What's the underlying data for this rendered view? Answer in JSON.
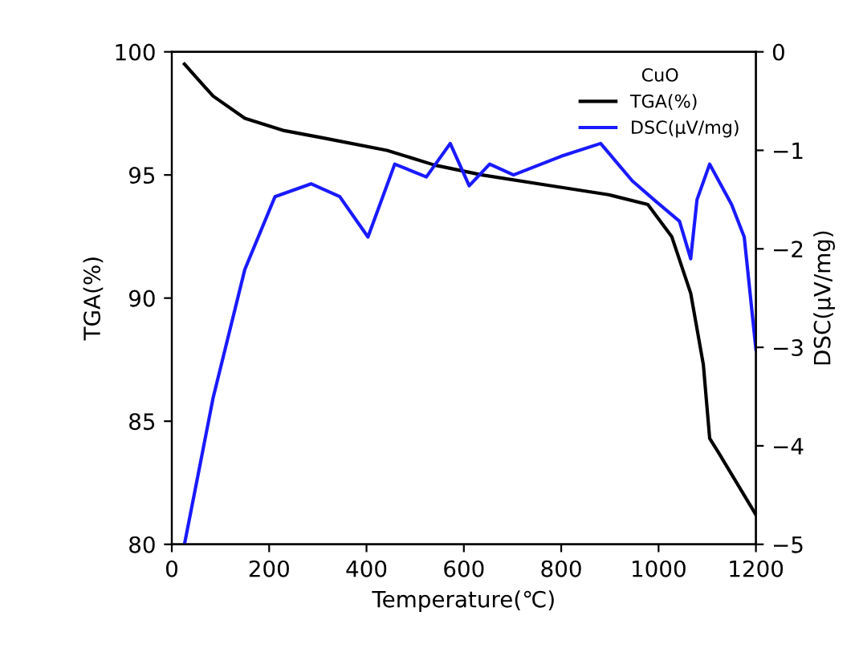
{
  "chart_data": {
    "type": "line",
    "xlabel": "Temperature(℃)",
    "ylabel": "TGA(%)",
    "y2label": "DSC(μV/mg)",
    "legend_title": "CuO",
    "legend": "top right",
    "grid": false,
    "xlim": [
      0,
      1200
    ],
    "xticks": [
      0,
      200,
      400,
      600,
      800,
      1000,
      1200
    ],
    "ylim": [
      80,
      100
    ],
    "yticks": [
      80,
      85,
      90,
      95,
      100
    ],
    "y2lim": [
      -5,
      0
    ],
    "y2ticks": [
      -5,
      -4,
      -3,
      -2,
      -1,
      0
    ],
    "series": [
      {
        "name": "TGA(%)",
        "color": "#000000",
        "x": [
          26,
          85,
          150,
          231,
          312,
          442,
          540,
          637,
          767,
          897,
          978,
          1027,
          1066,
          1092,
          1105,
          1124,
          1200
        ],
        "values": [
          99.5,
          98.2,
          97.3,
          96.8,
          96.5,
          96.0,
          95.4,
          95.0,
          94.6,
          94.2,
          93.8,
          92.5,
          90.2,
          87.3,
          84.3,
          83.7,
          81.2
        ]
      },
      {
        "name": "DSC(μV/mg)",
        "color": "#1a1aff",
        "axis": "y2",
        "x": [
          26,
          85,
          150,
          212,
          286,
          345,
          403,
          458,
          523,
          572,
          611,
          653,
          702,
          800,
          881,
          946,
          995,
          1043,
          1066,
          1079,
          1105,
          1150,
          1176,
          1200
        ],
        "values": [
          -5,
          -3.51,
          -2.21,
          -1.47,
          -1.34,
          -1.47,
          -1.88,
          -1.14,
          -1.27,
          -0.93,
          -1.36,
          -1.14,
          -1.25,
          -1.06,
          -0.93,
          -1.31,
          -1.52,
          -1.72,
          -2.1,
          -1.5,
          -1.14,
          -1.55,
          -1.88,
          -3.02
        ]
      }
    ]
  }
}
